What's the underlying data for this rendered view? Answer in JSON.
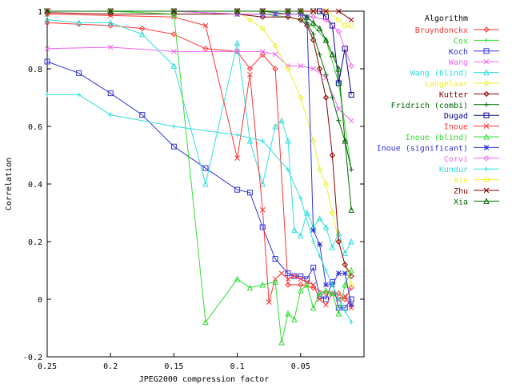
{
  "chart_data": {
    "type": "line",
    "xlabel": "JPEG2000 compression factor",
    "ylabel": "Correlation",
    "xlim": [
      0.25,
      0.0
    ],
    "ylim": [
      -0.2,
      1.0
    ],
    "xticks": [
      0.25,
      0.2,
      0.15,
      0.1,
      0.05
    ],
    "xtick_labels": [
      "0.25",
      "0.2",
      "0.15",
      "0.1",
      "0.05"
    ],
    "yticks": [
      -0.2,
      0,
      0.2,
      0.4,
      0.6,
      0.8,
      1
    ],
    "ytick_labels": [
      "-0.2",
      "0",
      "0.2",
      "0.4",
      "0.6",
      "0.8",
      "1"
    ],
    "grid": false,
    "legend_title": "Algorithm",
    "legend_position": "right",
    "series": [
      {
        "name": "Bruyndonckx",
        "color": "#ff3333",
        "marker": "diamond",
        "x": [
          0.25,
          0.225,
          0.2,
          0.175,
          0.15,
          0.125,
          0.1,
          0.09,
          0.08,
          0.07,
          0.06,
          0.05,
          0.04,
          0.03,
          0.02,
          0.015,
          0.01
        ],
        "y": [
          0.96,
          0.955,
          0.95,
          0.94,
          0.92,
          0.87,
          0.86,
          0.8,
          0.85,
          0.8,
          0.05,
          0.05,
          0.04,
          0.02,
          0.02,
          0.0,
          0.04
        ]
      },
      {
        "name": "Cox",
        "color": "#33dd33",
        "marker": "plus",
        "x": [
          0.25,
          0.2,
          0.15,
          0.1,
          0.08,
          0.06,
          0.05,
          0.04,
          0.03,
          0.02,
          0.01
        ],
        "y": [
          1.0,
          1.0,
          0.99,
          0.99,
          0.99,
          0.98,
          0.97,
          0.95,
          0.9,
          0.75,
          0.45
        ]
      },
      {
        "name": "Koch",
        "color": "#3333dd",
        "marker": "square",
        "x": [
          0.25,
          0.225,
          0.2,
          0.175,
          0.15,
          0.125,
          0.1,
          0.09,
          0.08,
          0.07,
          0.06,
          0.055,
          0.05,
          0.045,
          0.04,
          0.035,
          0.03,
          0.025,
          0.02,
          0.015,
          0.01
        ],
        "y": [
          0.825,
          0.785,
          0.715,
          0.64,
          0.53,
          0.455,
          0.38,
          0.37,
          0.25,
          0.14,
          0.09,
          0.08,
          0.08,
          0.07,
          0.11,
          0.01,
          0.0,
          0.06,
          -0.03,
          -0.03,
          0.0
        ]
      },
      {
        "name": "Wang",
        "color": "#ee66ee",
        "marker": "x",
        "x": [
          0.25,
          0.2,
          0.15,
          0.1,
          0.08,
          0.07,
          0.06,
          0.05,
          0.04,
          0.03,
          0.02,
          0.01
        ],
        "y": [
          0.87,
          0.875,
          0.86,
          0.86,
          0.86,
          0.85,
          0.81,
          0.81,
          0.8,
          0.77,
          0.66,
          0.62
        ]
      },
      {
        "name": "Wang (blind)",
        "color": "#33dddd",
        "marker": "triangle",
        "x": [
          0.25,
          0.225,
          0.2,
          0.175,
          0.15,
          0.125,
          0.1,
          0.09,
          0.08,
          0.07,
          0.065,
          0.06,
          0.055,
          0.05,
          0.045,
          0.04,
          0.035,
          0.03,
          0.025,
          0.02,
          0.015,
          0.01
        ],
        "y": [
          0.97,
          0.96,
          0.96,
          0.92,
          0.81,
          0.4,
          0.89,
          0.55,
          0.4,
          0.6,
          0.62,
          0.55,
          0.24,
          0.22,
          0.3,
          0.25,
          0.28,
          0.25,
          0.18,
          0.23,
          0.16,
          0.2
        ]
      },
      {
        "name": "Langelaar",
        "color": "#eeee33",
        "marker": "diamond",
        "x": [
          0.25,
          0.2,
          0.15,
          0.1,
          0.09,
          0.08,
          0.07,
          0.06,
          0.05,
          0.04,
          0.035,
          0.03,
          0.025,
          0.02,
          0.015,
          0.01
        ],
        "y": [
          1.0,
          1.0,
          1.0,
          1.0,
          0.97,
          0.94,
          0.88,
          0.8,
          0.7,
          0.55,
          0.45,
          0.4,
          0.3,
          0.2,
          0.12,
          0.05
        ]
      },
      {
        "name": "Kutter",
        "color": "#880000",
        "marker": "diamond",
        "x": [
          0.25,
          0.2,
          0.15,
          0.1,
          0.08,
          0.06,
          0.05,
          0.045,
          0.04,
          0.035,
          0.03,
          0.025,
          0.02,
          0.015,
          0.01
        ],
        "y": [
          0.995,
          0.99,
          0.99,
          0.99,
          0.98,
          0.98,
          0.97,
          0.95,
          0.9,
          0.8,
          0.7,
          0.5,
          0.2,
          0.12,
          0.08
        ]
      },
      {
        "name": "Fridrich (combi)",
        "color": "#006600",
        "marker": "plus",
        "x": [
          0.25,
          0.2,
          0.15,
          0.1,
          0.08,
          0.06,
          0.05,
          0.045,
          0.04,
          0.035,
          0.03,
          0.025,
          0.02,
          0.015,
          0.01
        ],
        "y": [
          1.0,
          1.0,
          1.0,
          1.0,
          1.0,
          0.99,
          0.99,
          0.96,
          0.92,
          0.85,
          0.78,
          0.7,
          0.62,
          0.55,
          0.45
        ]
      },
      {
        "name": "Dugad",
        "color": "#000088",
        "marker": "square",
        "x": [
          0.25,
          0.2,
          0.15,
          0.1,
          0.08,
          0.06,
          0.05,
          0.04,
          0.035,
          0.03,
          0.025,
          0.02,
          0.015,
          0.01
        ],
        "y": [
          1.0,
          1.0,
          1.0,
          1.0,
          1.0,
          1.0,
          1.0,
          1.0,
          1.0,
          0.98,
          0.95,
          0.75,
          0.87,
          0.71
        ]
      },
      {
        "name": "Inoue",
        "color": "#ff3333",
        "marker": "x",
        "x": [
          0.25,
          0.2,
          0.15,
          0.125,
          0.1,
          0.09,
          0.08,
          0.075,
          0.07,
          0.065,
          0.06,
          0.055,
          0.05,
          0.045,
          0.04,
          0.035,
          0.03,
          0.025,
          0.02,
          0.015,
          0.01
        ],
        "y": [
          0.99,
          0.985,
          0.98,
          0.95,
          0.49,
          0.78,
          0.31,
          -0.01,
          0.07,
          0.09,
          0.07,
          0.08,
          0.07,
          0.06,
          0.05,
          0.0,
          -0.02,
          0.02,
          0.0,
          0.01,
          -0.03
        ]
      },
      {
        "name": "Inoue (blind)",
        "color": "#33dd33",
        "marker": "triangle",
        "x": [
          0.25,
          0.2,
          0.15,
          0.125,
          0.1,
          0.09,
          0.08,
          0.07,
          0.065,
          0.06,
          0.055,
          0.05,
          0.045,
          0.04,
          0.035,
          0.03,
          0.025,
          0.02,
          0.015,
          0.01
        ],
        "y": [
          1.0,
          1.0,
          0.99,
          -0.08,
          0.07,
          0.04,
          0.05,
          0.06,
          -0.15,
          -0.05,
          -0.07,
          0.03,
          0.05,
          -0.03,
          0.02,
          0.03,
          0.02,
          -0.05,
          0.05,
          0.1
        ]
      },
      {
        "name": "Inoue (significant)",
        "color": "#3333dd",
        "marker": "star",
        "x": [
          0.25,
          0.2,
          0.15,
          0.1,
          0.08,
          0.07,
          0.06,
          0.05,
          0.045,
          0.04,
          0.035,
          0.03,
          0.025,
          0.02,
          0.015,
          0.01
        ],
        "y": [
          1.0,
          1.0,
          1.0,
          0.99,
          0.99,
          0.99,
          0.99,
          0.99,
          0.98,
          0.24,
          0.19,
          0.05,
          0.05,
          0.09,
          0.09,
          -0.02
        ]
      },
      {
        "name": "Corvi",
        "color": "#ee66ee",
        "marker": "diamond",
        "x": [
          0.25,
          0.2,
          0.15,
          0.1,
          0.08,
          0.06,
          0.05,
          0.04,
          0.03,
          0.02,
          0.01
        ],
        "y": [
          1.0,
          1.0,
          1.0,
          0.99,
          0.99,
          0.99,
          0.99,
          0.98,
          0.97,
          0.93,
          0.81
        ]
      },
      {
        "name": "Kundur",
        "color": "#33dddd",
        "marker": "plus",
        "x": [
          0.25,
          0.225,
          0.2,
          0.15,
          0.1,
          0.08,
          0.06,
          0.05,
          0.04,
          0.035,
          0.03,
          0.025,
          0.02,
          0.015,
          0.01
        ],
        "y": [
          0.71,
          0.71,
          0.64,
          0.6,
          0.57,
          0.55,
          0.45,
          0.35,
          0.2,
          0.15,
          0.1,
          0.05,
          0.0,
          -0.04,
          -0.08
        ]
      },
      {
        "name": "Xie",
        "color": "#eeee33",
        "marker": "circle",
        "x": [
          0.25,
          0.2,
          0.15,
          0.1,
          0.08,
          0.06,
          0.05,
          0.04,
          0.03,
          0.02,
          0.015,
          0.01
        ],
        "y": [
          1.0,
          1.0,
          1.0,
          1.0,
          1.0,
          1.0,
          1.0,
          1.0,
          1.0,
          0.97,
          0.95,
          0.95
        ]
      },
      {
        "name": "Zhu",
        "color": "#880000",
        "marker": "x",
        "x": [
          0.25,
          0.2,
          0.15,
          0.1,
          0.08,
          0.06,
          0.05,
          0.04,
          0.03,
          0.02,
          0.01
        ],
        "y": [
          1.0,
          1.0,
          1.0,
          1.0,
          1.0,
          1.0,
          1.0,
          1.0,
          1.0,
          1.0,
          0.97
        ]
      },
      {
        "name": "Xia",
        "color": "#006600",
        "marker": "triangle",
        "x": [
          0.25,
          0.2,
          0.15,
          0.1,
          0.08,
          0.06,
          0.05,
          0.045,
          0.04,
          0.035,
          0.03,
          0.025,
          0.02,
          0.015,
          0.01
        ],
        "y": [
          1.0,
          1.0,
          1.0,
          1.0,
          1.0,
          1.0,
          1.0,
          0.98,
          0.96,
          0.94,
          0.9,
          0.85,
          0.8,
          0.55,
          0.31
        ]
      }
    ]
  }
}
